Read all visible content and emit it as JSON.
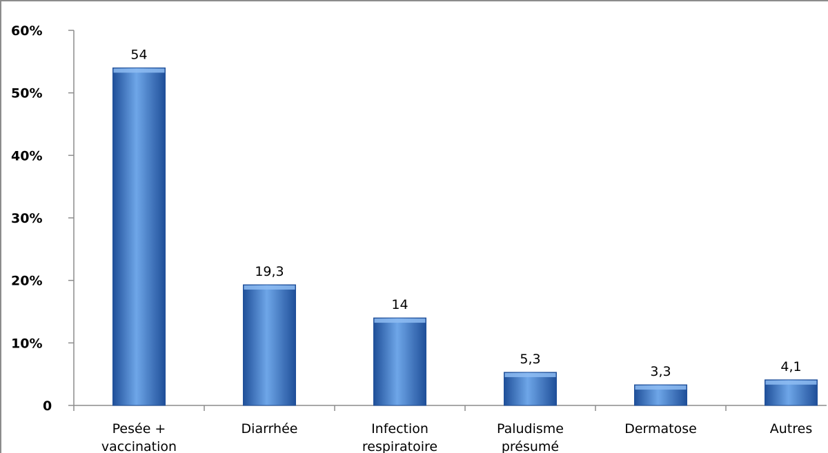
{
  "chart_data": {
    "type": "bar",
    "categories": [
      [
        "Pesée +",
        "vaccination"
      ],
      [
        "Diarrhée"
      ],
      [
        "Infection",
        "respiratoire"
      ],
      [
        "Paludisme",
        "présumé"
      ],
      [
        "Dermatose"
      ],
      [
        "Autres"
      ]
    ],
    "values": [
      54,
      19.3,
      14,
      5.3,
      3.3,
      4.1
    ],
    "data_labels": [
      "54",
      "19,3",
      "14",
      "5,3",
      "3,3",
      "4,1"
    ],
    "y_ticks": [
      {
        "value": 0,
        "label": "0"
      },
      {
        "value": 10,
        "label": "10%"
      },
      {
        "value": 20,
        "label": "20%"
      },
      {
        "value": 30,
        "label": "30%"
      },
      {
        "value": 40,
        "label": "40%"
      },
      {
        "value": 50,
        "label": "50%"
      },
      {
        "value": 60,
        "label": "60%"
      }
    ],
    "ylim": [
      0,
      60
    ],
    "grid": false,
    "legend": "none",
    "title": "",
    "xlabel": "",
    "ylabel": "",
    "colors": {
      "bar_light": "#6ea6e8",
      "bar_mid": "#3f7fd0",
      "bar_dark": "#1f4f99",
      "bar_top": "#8ebcf2",
      "axis": "#8c8c8c"
    }
  }
}
